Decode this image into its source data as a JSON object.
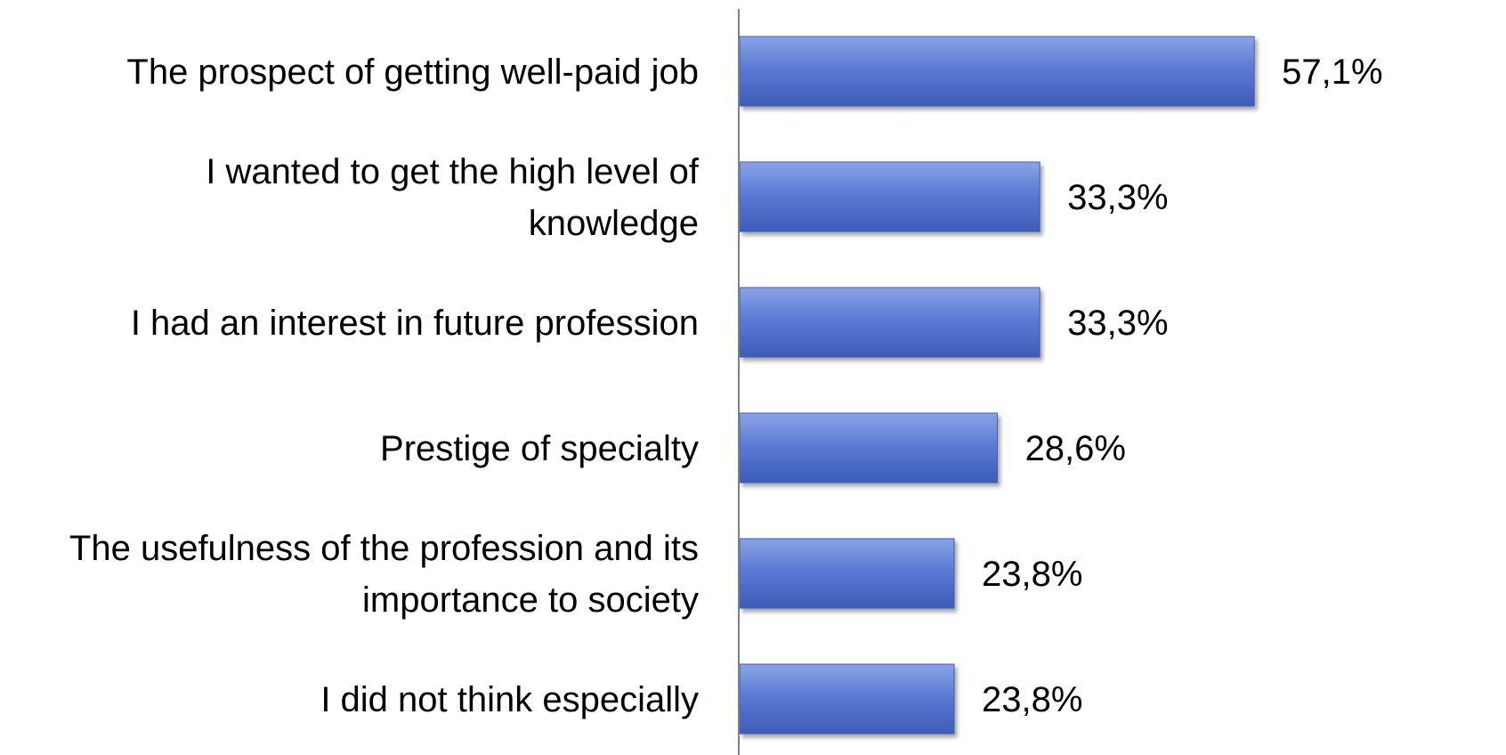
{
  "chart_data": {
    "type": "bar",
    "orientation": "horizontal",
    "categories": [
      "The prospect of getting well-paid job",
      "I wanted to get the high level of knowledge",
      "I had an interest in future profession",
      "Prestige of specialty",
      "The usefulness of the profession and its importance to society",
      "I did not think especially"
    ],
    "category_lines": [
      [
        "The prospect of getting well-paid job"
      ],
      [
        "I wanted to get the high level of",
        "knowledge"
      ],
      [
        "I had an interest in future profession"
      ],
      [
        "Prestige of specialty"
      ],
      [
        "The usefulness of the profession and its",
        "importance to society"
      ],
      [
        "I did not think especially"
      ]
    ],
    "values": [
      57.1,
      33.3,
      33.3,
      28.6,
      23.8,
      23.8
    ],
    "value_labels": [
      "57,1%",
      "33,3%",
      "33,3%",
      "28,6%",
      "23,8%",
      "23,8%"
    ],
    "unit": "%",
    "title": "",
    "xlabel": "",
    "ylabel": "",
    "xlim": [
      0,
      60
    ],
    "grid": false,
    "legend": "none",
    "bar_color": "#5b7bd5",
    "bar_color_light": "#8aa3e6",
    "bar_color_dark": "#3d5cb8",
    "axis_color": "#808080"
  }
}
